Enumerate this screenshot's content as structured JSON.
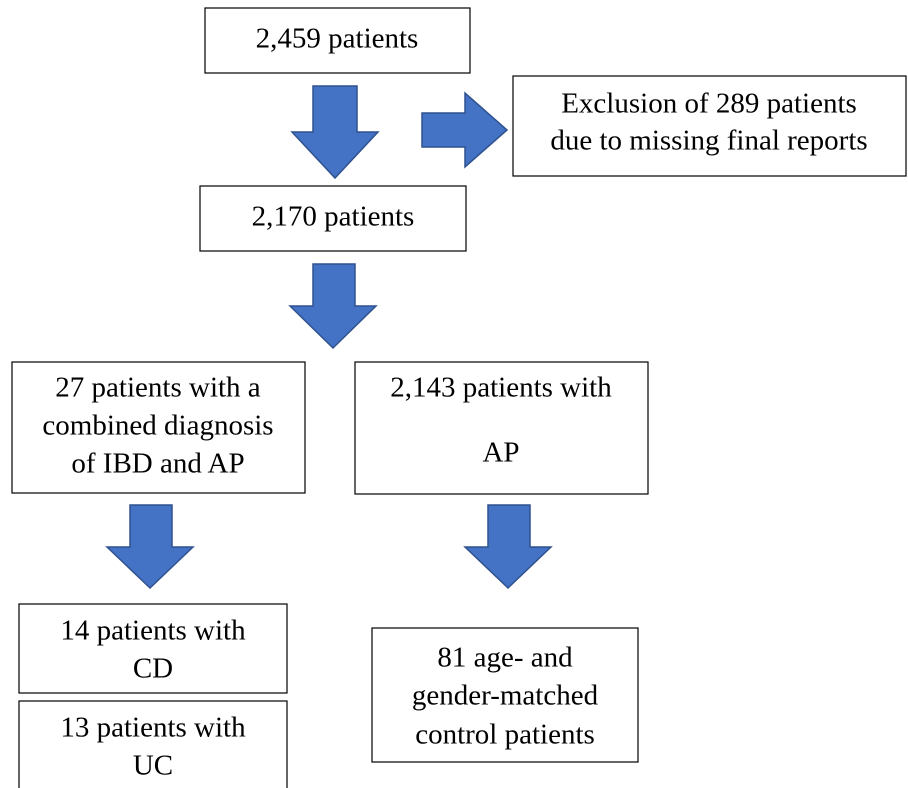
{
  "nodes": [
    {
      "lines": [
        "2,459 patients"
      ]
    },
    {
      "lines": [
        "Exclusion of 289 patients",
        "due to missing final reports"
      ]
    },
    {
      "lines": [
        "2,170 patients"
      ]
    },
    {
      "lines": [
        "27 patients with a",
        "combined diagnosis",
        "of IBD and AP"
      ]
    },
    {
      "lines": [
        "2,143 patients with",
        "AP"
      ]
    },
    {
      "lines": [
        "14 patients with",
        "CD"
      ]
    },
    {
      "lines": [
        "13 patients with",
        "UC"
      ]
    },
    {
      "lines": [
        "81 age- and",
        "gender-matched",
        "control patients"
      ]
    }
  ]
}
